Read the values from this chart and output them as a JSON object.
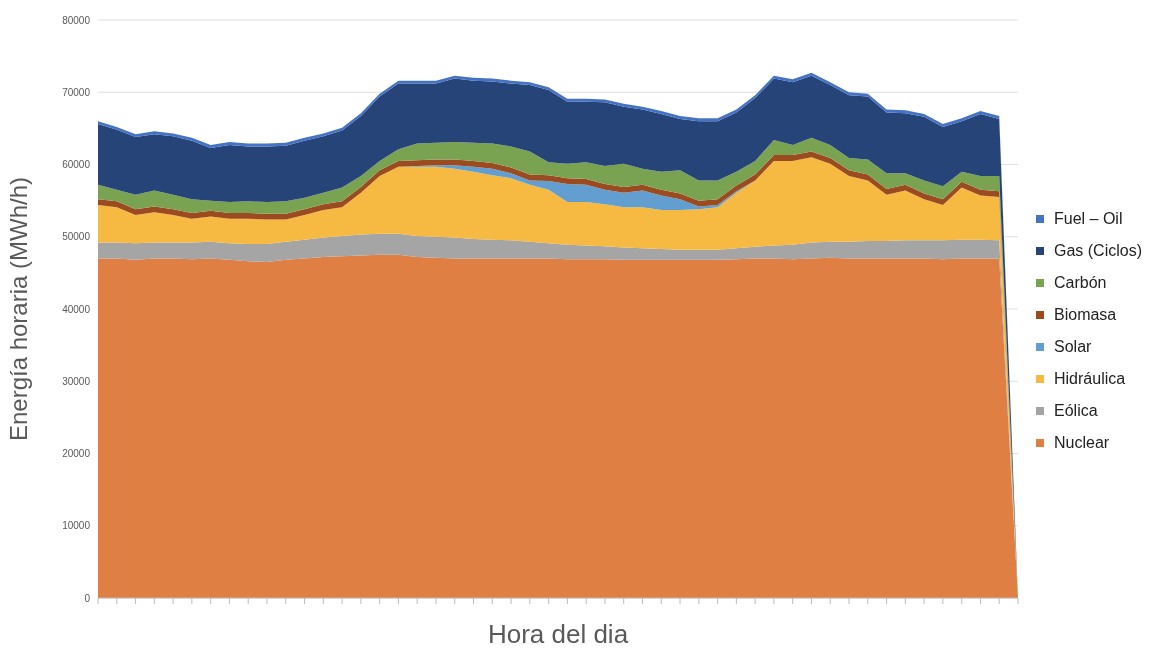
{
  "chart_data": {
    "type": "area",
    "stacked": true,
    "xlabel": "Hora del dia",
    "ylabel": "Energía horaria  (MWh/h)",
    "categories": [
      null,
      null,
      null,
      null,
      null,
      null,
      null,
      null,
      null,
      null,
      null,
      null,
      null,
      null,
      null,
      null,
      null,
      null,
      null,
      null,
      null,
      null,
      null,
      null,
      null,
      null,
      null,
      null,
      null,
      null,
      null,
      null,
      null,
      null,
      null,
      null,
      null,
      null,
      null,
      null,
      null,
      null,
      null,
      null,
      null,
      null,
      null,
      null,
      null,
      null
    ],
    "ylim": [
      0,
      80000
    ],
    "yticks": [
      0,
      10000,
      20000,
      30000,
      40000,
      50000,
      60000,
      70000,
      80000
    ],
    "grid": "y",
    "legend": "right",
    "series": [
      {
        "name": "Nuclear",
        "color": "#e07f44",
        "values": [
          47000,
          47000,
          46800,
          47000,
          47000,
          46900,
          47000,
          46800,
          46600,
          46500,
          46800,
          47000,
          47200,
          47300,
          47400,
          47500,
          47500,
          47200,
          47100,
          47000,
          47000,
          47000,
          47000,
          47000,
          47000,
          46900,
          46900,
          46900,
          46800,
          46800,
          46800,
          46800,
          46800,
          46800,
          46900,
          47000,
          47000,
          46900,
          47000,
          47100,
          47000,
          47000,
          47000,
          47000,
          47000,
          46900,
          47000,
          47000,
          47000,
          0
        ]
      },
      {
        "name": "Eólica",
        "color": "#a5a5a5",
        "values": [
          2200,
          2200,
          2300,
          2200,
          2200,
          2300,
          2300,
          2300,
          2400,
          2500,
          2500,
          2600,
          2700,
          2800,
          2900,
          2900,
          2900,
          2900,
          2900,
          2900,
          2700,
          2600,
          2500,
          2300,
          2100,
          2000,
          1900,
          1800,
          1700,
          1600,
          1500,
          1400,
          1400,
          1400,
          1500,
          1600,
          1800,
          2000,
          2200,
          2200,
          2300,
          2400,
          2400,
          2500,
          2500,
          2600,
          2600,
          2600,
          2500,
          0
        ]
      },
      {
        "name": "Hidráulica",
        "color": "#f6b942",
        "values": [
          5200,
          4900,
          3900,
          4200,
          3800,
          3300,
          3500,
          3400,
          3500,
          3400,
          3100,
          3400,
          3800,
          4000,
          5800,
          8000,
          9300,
          9600,
          9700,
          9500,
          9300,
          8900,
          8600,
          7900,
          7400,
          5900,
          6000,
          5800,
          5600,
          5700,
          5400,
          5500,
          5600,
          5900,
          7700,
          9200,
          11700,
          11600,
          11800,
          10800,
          9100,
          8400,
          6400,
          6900,
          5700,
          4900,
          7200,
          6100,
          6000,
          0
        ]
      },
      {
        "name": "Solar",
        "color": "#629fd0",
        "values": [
          null,
          null,
          null,
          null,
          null,
          null,
          null,
          null,
          null,
          null,
          null,
          null,
          null,
          null,
          null,
          null,
          0,
          100,
          200,
          500,
          700,
          900,
          700,
          600,
          1200,
          2500,
          2400,
          2000,
          2000,
          2300,
          2000,
          1500,
          400,
          300,
          200,
          0,
          null,
          null,
          null,
          null,
          null,
          null,
          null,
          null,
          null,
          null,
          null,
          null,
          null,
          null
        ]
      },
      {
        "name": "Biomasa",
        "color": "#9c4a1f",
        "values": [
          800,
          800,
          800,
          800,
          800,
          800,
          800,
          800,
          800,
          800,
          800,
          800,
          800,
          800,
          800,
          800,
          800,
          800,
          800,
          800,
          800,
          800,
          800,
          800,
          800,
          800,
          800,
          800,
          800,
          800,
          800,
          800,
          800,
          800,
          800,
          800,
          800,
          800,
          800,
          800,
          800,
          800,
          800,
          800,
          800,
          800,
          800,
          800,
          800,
          0
        ]
      },
      {
        "name": "Carbón",
        "color": "#7aa351",
        "values": [
          2000,
          1600,
          2000,
          2200,
          2000,
          1900,
          1400,
          1500,
          1600,
          1600,
          1700,
          1600,
          1600,
          1900,
          1500,
          1300,
          1600,
          2300,
          2300,
          2400,
          2500,
          2700,
          2900,
          3200,
          1800,
          2000,
          2300,
          2500,
          3200,
          2200,
          2500,
          3200,
          2800,
          2600,
          1900,
          1900,
          2100,
          1400,
          1900,
          1800,
          1700,
          2100,
          2200,
          1600,
          1800,
          1800,
          1400,
          1900,
          2100,
          0
        ]
      },
      {
        "name": "Gas (Ciclos)",
        "color": "#264478",
        "values": [
          8400,
          8300,
          8000,
          7800,
          8100,
          8100,
          7300,
          7900,
          7600,
          7700,
          7700,
          7900,
          7800,
          7900,
          8300,
          8900,
          9100,
          8300,
          8200,
          8800,
          8600,
          8600,
          8700,
          9200,
          10000,
          8600,
          8400,
          8800,
          7900,
          8200,
          8000,
          7100,
          8200,
          8200,
          8200,
          8700,
          8500,
          8700,
          8600,
          8300,
          8700,
          8700,
          8400,
          8300,
          8800,
          8200,
          7000,
          8600,
          7900,
          0
        ]
      },
      {
        "name": "Fuel – Oil",
        "color": "#4472c4",
        "values": [
          400,
          400,
          400,
          400,
          400,
          400,
          400,
          400,
          400,
          400,
          400,
          400,
          400,
          400,
          400,
          400,
          400,
          400,
          400,
          400,
          400,
          400,
          400,
          400,
          400,
          400,
          400,
          400,
          400,
          400,
          400,
          400,
          400,
          400,
          400,
          400,
          400,
          400,
          400,
          400,
          400,
          400,
          400,
          400,
          400,
          400,
          400,
          400,
          400,
          0
        ]
      }
    ]
  }
}
